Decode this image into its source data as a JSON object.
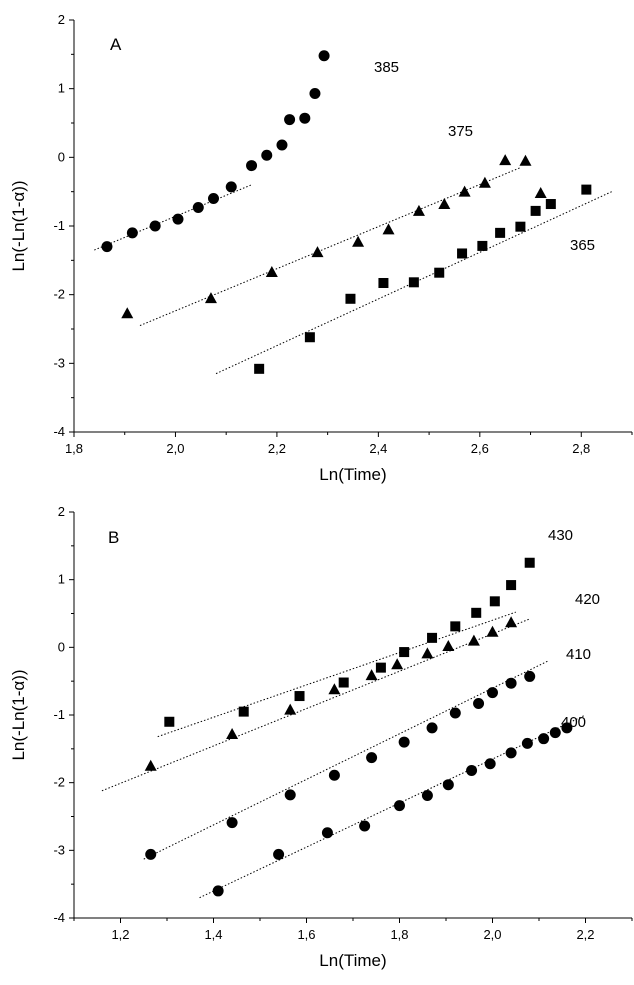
{
  "chart_data": [
    {
      "type": "scatter",
      "panel_label": "A",
      "xlabel": "Ln(Time)",
      "ylabel": "Ln(-Ln(1-α))",
      "xlim": [
        1.8,
        2.9
      ],
      "ylim": [
        -4,
        2
      ],
      "xticks": [
        "1,8",
        "2,0",
        "2,2",
        "2,4",
        "2,6",
        "2,8"
      ],
      "yticks": [
        "-4",
        "-3",
        "-2",
        "-1",
        "0",
        "1",
        "2"
      ],
      "series": [
        {
          "name": "385",
          "marker": "circle",
          "x": [
            1.865,
            1.915,
            1.96,
            2.005,
            2.045,
            2.075,
            2.11,
            2.15,
            2.18,
            2.21,
            2.225,
            2.255,
            2.275,
            2.293
          ],
          "y": [
            -1.3,
            -1.1,
            -1.0,
            -0.9,
            -0.73,
            -0.6,
            -0.43,
            -0.12,
            0.03,
            0.18,
            0.55,
            0.57,
            0.93,
            1.48
          ],
          "fit": {
            "x": [
              1.84,
              2.15
            ],
            "y": [
              -1.35,
              -0.4
            ]
          }
        },
        {
          "name": "375",
          "marker": "triangle",
          "x": [
            1.905,
            2.07,
            2.19,
            2.28,
            2.36,
            2.42,
            2.48,
            2.53,
            2.57,
            2.61,
            2.65,
            2.69,
            2.72
          ],
          "y": [
            -2.27,
            -2.05,
            -1.67,
            -1.38,
            -1.23,
            -1.05,
            -0.78,
            -0.68,
            -0.5,
            -0.37,
            -0.04,
            -0.05,
            -0.52
          ],
          "fit": {
            "x": [
              1.93,
              2.68
            ],
            "y": [
              -2.45,
              -0.15
            ]
          }
        },
        {
          "name": "365",
          "marker": "square",
          "x": [
            2.165,
            2.265,
            2.345,
            2.41,
            2.47,
            2.52,
            2.565,
            2.605,
            2.64,
            2.68,
            2.71,
            2.74,
            2.81
          ],
          "y": [
            -3.08,
            -2.62,
            -2.06,
            -1.83,
            -1.82,
            -1.68,
            -1.4,
            -1.29,
            -1.1,
            -1.01,
            -0.78,
            -0.68,
            -0.47
          ],
          "fit": {
            "x": [
              2.08,
              2.86
            ],
            "y": [
              -3.15,
              -0.5
            ]
          }
        }
      ]
    },
    {
      "type": "scatter",
      "panel_label": "B",
      "xlabel": "Ln(Time)",
      "ylabel": "Ln(-Ln(1-α))",
      "xlim": [
        1.1,
        2.3
      ],
      "ylim": [
        -4,
        2
      ],
      "xticks": [
        "1,2",
        "1,4",
        "1,6",
        "1,8",
        "2,0",
        "2,2"
      ],
      "yticks": [
        "-4",
        "-3",
        "-2",
        "-1",
        "0",
        "1",
        "2"
      ],
      "series": [
        {
          "name": "430",
          "marker": "square",
          "x": [
            1.305,
            1.465,
            1.585,
            1.68,
            1.76,
            1.81,
            1.87,
            1.92,
            1.965,
            2.005,
            2.04,
            2.08
          ],
          "y": [
            -1.1,
            -0.95,
            -0.72,
            -0.52,
            -0.3,
            -0.07,
            0.14,
            0.31,
            0.51,
            0.68,
            0.92,
            1.25
          ],
          "fit": {
            "x": [
              1.28,
              2.05
            ],
            "y": [
              -1.32,
              0.52
            ]
          }
        },
        {
          "name": "420",
          "marker": "triangle",
          "x": [
            1.265,
            1.44,
            1.565,
            1.66,
            1.74,
            1.795,
            1.86,
            1.905,
            1.96,
            2.0,
            2.04
          ],
          "y": [
            -1.75,
            -1.28,
            -0.92,
            -0.62,
            -0.41,
            -0.25,
            -0.09,
            0.02,
            0.1,
            0.23,
            0.37
          ],
          "fit": {
            "x": [
              1.16,
              2.08
            ],
            "y": [
              -2.12,
              0.42
            ]
          }
        },
        {
          "name": "410",
          "marker": "circle",
          "x": [
            1.265,
            1.44,
            1.565,
            1.66,
            1.74,
            1.81,
            1.87,
            1.92,
            1.97,
            2.0,
            2.04,
            2.08
          ],
          "y": [
            -3.06,
            -2.59,
            -2.18,
            -1.89,
            -1.63,
            -1.4,
            -1.19,
            -0.97,
            -0.83,
            -0.67,
            -0.53,
            -0.43
          ],
          "fit": {
            "x": [
              1.25,
              2.12
            ],
            "y": [
              -3.13,
              -0.2
            ]
          }
        },
        {
          "name": "400",
          "marker": "circle",
          "x": [
            1.41,
            1.54,
            1.645,
            1.725,
            1.8,
            1.86,
            1.905,
            1.955,
            1.995,
            2.04,
            2.075,
            2.11,
            2.135,
            2.16
          ],
          "y": [
            -3.6,
            -3.06,
            -2.74,
            -2.64,
            -2.34,
            -2.19,
            -2.03,
            -1.82,
            -1.72,
            -1.56,
            -1.42,
            -1.35,
            -1.26,
            -1.19
          ],
          "fit": {
            "x": [
              1.37,
              2.2
            ],
            "y": [
              -3.7,
              -1.0
            ]
          }
        }
      ]
    }
  ]
}
